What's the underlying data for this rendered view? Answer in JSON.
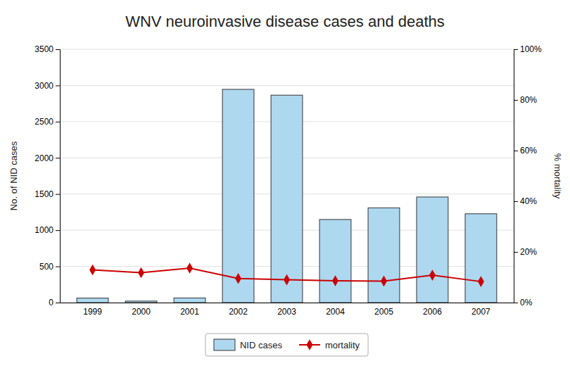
{
  "chart_data": {
    "type": "bar",
    "title": "WNV neuroinvasive disease cases and deaths",
    "categories": [
      "1999",
      "2000",
      "2001",
      "2002",
      "2003",
      "2004",
      "2005",
      "2006",
      "2007"
    ],
    "series": [
      {
        "name": "NID cases",
        "type": "bar",
        "color": "#add8f0",
        "values": [
          62,
          21,
          64,
          2946,
          2866,
          1148,
          1309,
          1459,
          1227
        ]
      },
      {
        "name": "mortality",
        "type": "line",
        "axis": "y2",
        "color": "#cc0000",
        "marker": "diamond",
        "values": [
          12.9,
          11.8,
          13.6,
          9.5,
          9.0,
          8.6,
          8.5,
          10.8,
          8.3
        ]
      }
    ],
    "y_label": "No. of NID cases",
    "y2_label": "% mortality",
    "ylim": [
      0,
      3500
    ],
    "yticks": [
      0,
      500,
      1000,
      1500,
      2000,
      2500,
      3000,
      3500
    ],
    "y2lim": [
      0,
      100
    ],
    "y2ticks": [
      {
        "value": 0,
        "label": "0%"
      },
      {
        "value": 20,
        "label": "20%"
      },
      {
        "value": 40,
        "label": "40%"
      },
      {
        "value": 60,
        "label": "60%"
      },
      {
        "value": 80,
        "label": "80%"
      },
      {
        "value": 100,
        "label": "100%"
      }
    ],
    "grid": true,
    "legend": "bottom"
  }
}
